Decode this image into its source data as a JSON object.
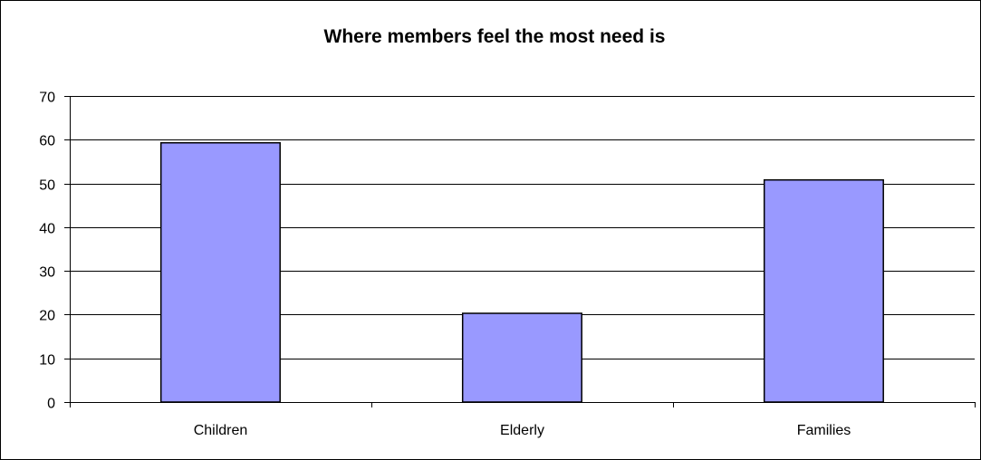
{
  "chart_data": {
    "type": "bar",
    "title": "Where members feel the most need is",
    "xlabel": "",
    "ylabel": "",
    "categories": [
      "Children",
      "Elderly",
      "Families"
    ],
    "values": [
      59.3,
      20.3,
      50.8
    ],
    "ylim": [
      0,
      70
    ],
    "yticks": [
      0,
      10,
      20,
      30,
      40,
      50,
      60,
      70
    ],
    "grid": true,
    "legend": "none",
    "bar_color": "#9999ff",
    "bar_edge_color": "#000000"
  }
}
